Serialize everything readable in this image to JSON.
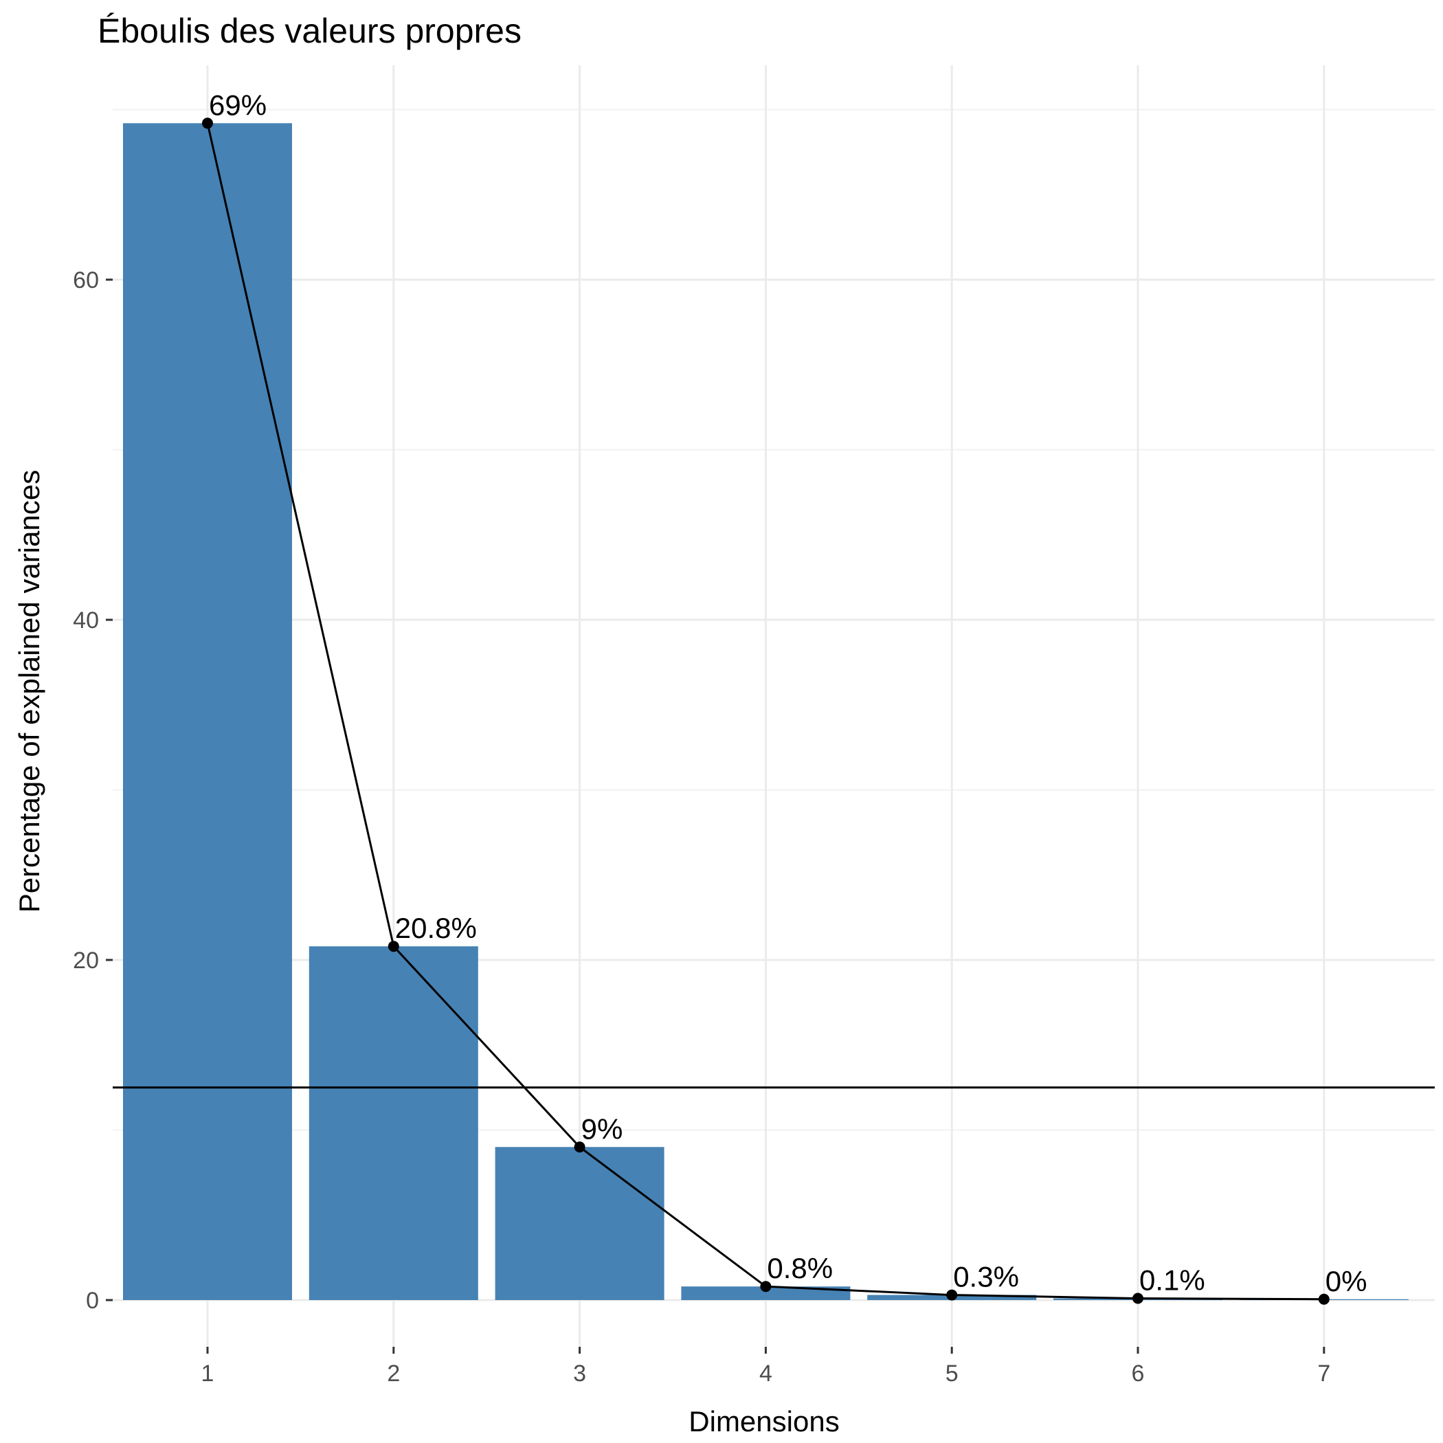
{
  "colors": {
    "bar_fill": "#4682B4",
    "line": "#000000",
    "point": "#000000",
    "grid_major": "#EBEBEB",
    "grid_minor": "#F2F2F2",
    "tick_text": "#4D4D4D",
    "reference_line": "#000000"
  },
  "chart_data": {
    "type": "bar",
    "title": "Éboulis des valeurs propres",
    "xlabel": "Dimensions",
    "ylabel": "Percentage of explained variances",
    "categories": [
      "1",
      "2",
      "3",
      "4",
      "5",
      "6",
      "7"
    ],
    "values": [
      69.2,
      20.8,
      9.0,
      0.8,
      0.3,
      0.1,
      0.05
    ],
    "data_labels": [
      "69%",
      "20.8%",
      "9%",
      "0.8%",
      "0.3%",
      "0.1%",
      "0%"
    ],
    "overlay_line": true,
    "reference_line_y": 12.5,
    "ylim": [
      0,
      72
    ],
    "yticks": [
      0,
      20,
      40,
      60
    ],
    "ytick_labels": [
      "0",
      "20",
      "40",
      "60"
    ],
    "y_minor_ticks": [
      10,
      30,
      50,
      70
    ],
    "grid": true,
    "legend": "none"
  }
}
